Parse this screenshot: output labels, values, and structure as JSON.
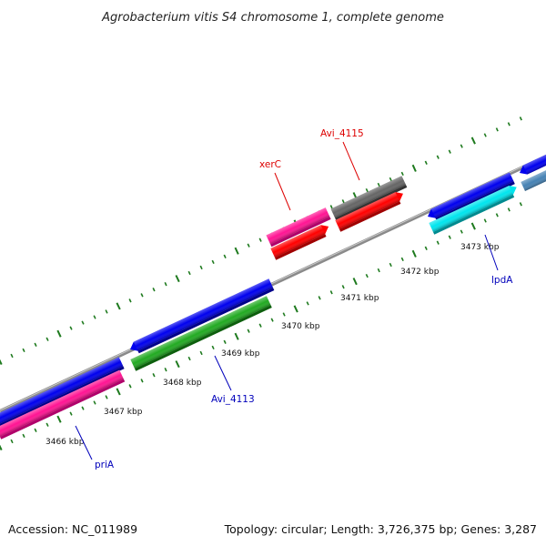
{
  "title": "Agrobacterium vitis S4 chromosome 1, complete genome",
  "footer": {
    "accession": "Accession: NC_011989",
    "summary": "Topology: circular; Length: 3,726,375 bp; Genes: 3,287"
  },
  "colors": {
    "backbone": "#8a8a8a",
    "tick": "#1e7a1e",
    "label_red": "#dd0000",
    "label_blue": "#0000bb"
  },
  "scale": {
    "unit": "kbp",
    "labels": [
      {
        "id": "k3466",
        "text": "3466 kbp"
      },
      {
        "id": "k3467",
        "text": "3467 kbp"
      },
      {
        "id": "k3468",
        "text": "3468 kbp"
      },
      {
        "id": "k3469",
        "text": "3469 kbp"
      },
      {
        "id": "k3470",
        "text": "3470 kbp"
      },
      {
        "id": "k3471",
        "text": "3471 kbp"
      },
      {
        "id": "k3472",
        "text": "3472 kbp"
      },
      {
        "id": "k3473",
        "text": "3473 kbp"
      }
    ]
  },
  "features": [
    {
      "id": "f1",
      "color": "#0000ee"
    },
    {
      "id": "f2",
      "color": "#ff1493"
    },
    {
      "id": "f3",
      "color": "#0000ee"
    },
    {
      "id": "f4",
      "color": "#22aa22"
    },
    {
      "id": "f5",
      "color": "#ff1493"
    },
    {
      "id": "f6",
      "color": "#ff0000"
    },
    {
      "id": "f7",
      "color": "#666666"
    },
    {
      "id": "f8",
      "color": "#ff0000"
    },
    {
      "id": "f9",
      "color": "#0000ee"
    },
    {
      "id": "f10",
      "color": "#00e5ee"
    },
    {
      "id": "f11",
      "color": "#0000ee"
    },
    {
      "id": "f12",
      "color": "#4682b4"
    }
  ],
  "labels": [
    {
      "id": "priA",
      "text": "priA",
      "color": "#0000bb"
    },
    {
      "id": "avi4113",
      "text": "Avi_4113",
      "color": "#0000bb"
    },
    {
      "id": "xerC",
      "text": "xerC",
      "color": "#dd0000"
    },
    {
      "id": "avi4115",
      "text": "Avi_4115",
      "color": "#dd0000"
    },
    {
      "id": "lpdA",
      "text": "lpdA",
      "color": "#0000bb"
    }
  ]
}
